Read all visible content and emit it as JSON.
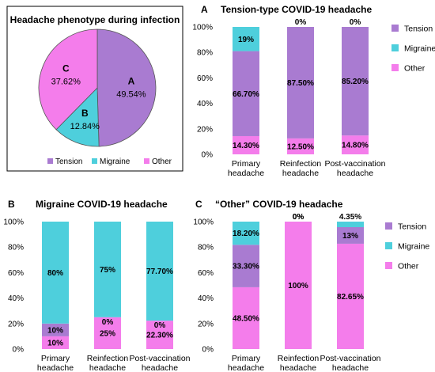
{
  "colors": {
    "tension": "#A97BD1",
    "migraine": "#4ECFDC",
    "other": "#F47DEB"
  },
  "chart_data": [
    {
      "type": "pie",
      "title": "Headache phenotype during infection",
      "slices": [
        {
          "letter": "A",
          "name": "Tension",
          "value": 49.54,
          "label": "49.54%"
        },
        {
          "letter": "B",
          "name": "Migraine",
          "value": 12.84,
          "label": "12.84%"
        },
        {
          "letter": "C",
          "name": "Other",
          "value": 37.62,
          "label": "37.62%"
        }
      ],
      "legend": [
        "Tension",
        "Migraine",
        "Other"
      ],
      "legend_position": "bottom"
    },
    {
      "type": "bar",
      "panel": "A",
      "title": "Tension-type COVID-19 headache",
      "categories": [
        "Primary headache",
        "Reinfection headache",
        "Post-vaccination headache"
      ],
      "category_lines": [
        [
          "Primary",
          "headache"
        ],
        [
          "Reinfection",
          "headache"
        ],
        [
          "Post-vaccination",
          "headache"
        ]
      ],
      "yticks": [
        "0%",
        "20%",
        "40%",
        "60%",
        "80%",
        "100%"
      ],
      "ylim": [
        0,
        100
      ],
      "series": [
        {
          "name": "Other",
          "values": [
            14.3,
            12.5,
            14.8
          ],
          "labels": [
            "14.30%",
            "12.50%",
            "14.80%"
          ]
        },
        {
          "name": "Tension",
          "values": [
            66.7,
            87.5,
            85.2
          ],
          "labels": [
            "66.70%",
            "87.50%",
            "85.20%"
          ]
        },
        {
          "name": "Migraine",
          "values": [
            19,
            0,
            0
          ],
          "labels": [
            "19%",
            "0%",
            "0%"
          ]
        }
      ],
      "legend": [
        "Tension",
        "Migraine",
        "Other"
      ],
      "legend_position": "right"
    },
    {
      "type": "bar",
      "panel": "B",
      "title": "Migraine COVID-19 headache",
      "categories": [
        "Primary headache",
        "Reinfection headache",
        "Post-vaccination headache"
      ],
      "category_lines": [
        [
          "Primary",
          "headache"
        ],
        [
          "Reinfection",
          "headache"
        ],
        [
          "Post-vaccination",
          "headache"
        ]
      ],
      "yticks": [
        "0%",
        "20%",
        "40%",
        "60%",
        "80%",
        "100%"
      ],
      "ylim": [
        0,
        100
      ],
      "series": [
        {
          "name": "Other",
          "values": [
            10,
            25,
            22.3
          ],
          "labels": [
            "10%",
            "25%",
            "22.30%"
          ]
        },
        {
          "name": "Tension",
          "values": [
            10,
            0,
            0
          ],
          "labels": [
            "10%",
            "0%",
            "0%"
          ]
        },
        {
          "name": "Migraine",
          "values": [
            80,
            75,
            77.7
          ],
          "labels": [
            "80%",
            "75%",
            "77.70%"
          ]
        }
      ]
    },
    {
      "type": "bar",
      "panel": "C",
      "title": "“Other” COVID-19 headache",
      "categories": [
        "Primary headache",
        "Reinfection headache",
        "Post-vaccination headache"
      ],
      "category_lines": [
        [
          "Primary",
          "headache"
        ],
        [
          "Reinfection",
          "headache"
        ],
        [
          "Post-vaccination",
          "headache"
        ]
      ],
      "yticks": [
        "0%",
        "20%",
        "40%",
        "60%",
        "80%",
        "100%"
      ],
      "ylim": [
        0,
        100
      ],
      "series": [
        {
          "name": "Other",
          "values": [
            48.5,
            100,
            82.65
          ],
          "labels": [
            "48.50%",
            "100%",
            "82.65%"
          ]
        },
        {
          "name": "Tension",
          "values": [
            33.3,
            0,
            13
          ],
          "labels": [
            "33.30%",
            "0%",
            "13%"
          ]
        },
        {
          "name": "Migraine",
          "values": [
            18.2,
            0,
            4.35
          ],
          "labels": [
            "18.20%",
            "0%",
            "4.35%"
          ]
        }
      ],
      "legend": [
        "Tension",
        "Migraine",
        "Other"
      ],
      "legend_position": "right"
    }
  ]
}
